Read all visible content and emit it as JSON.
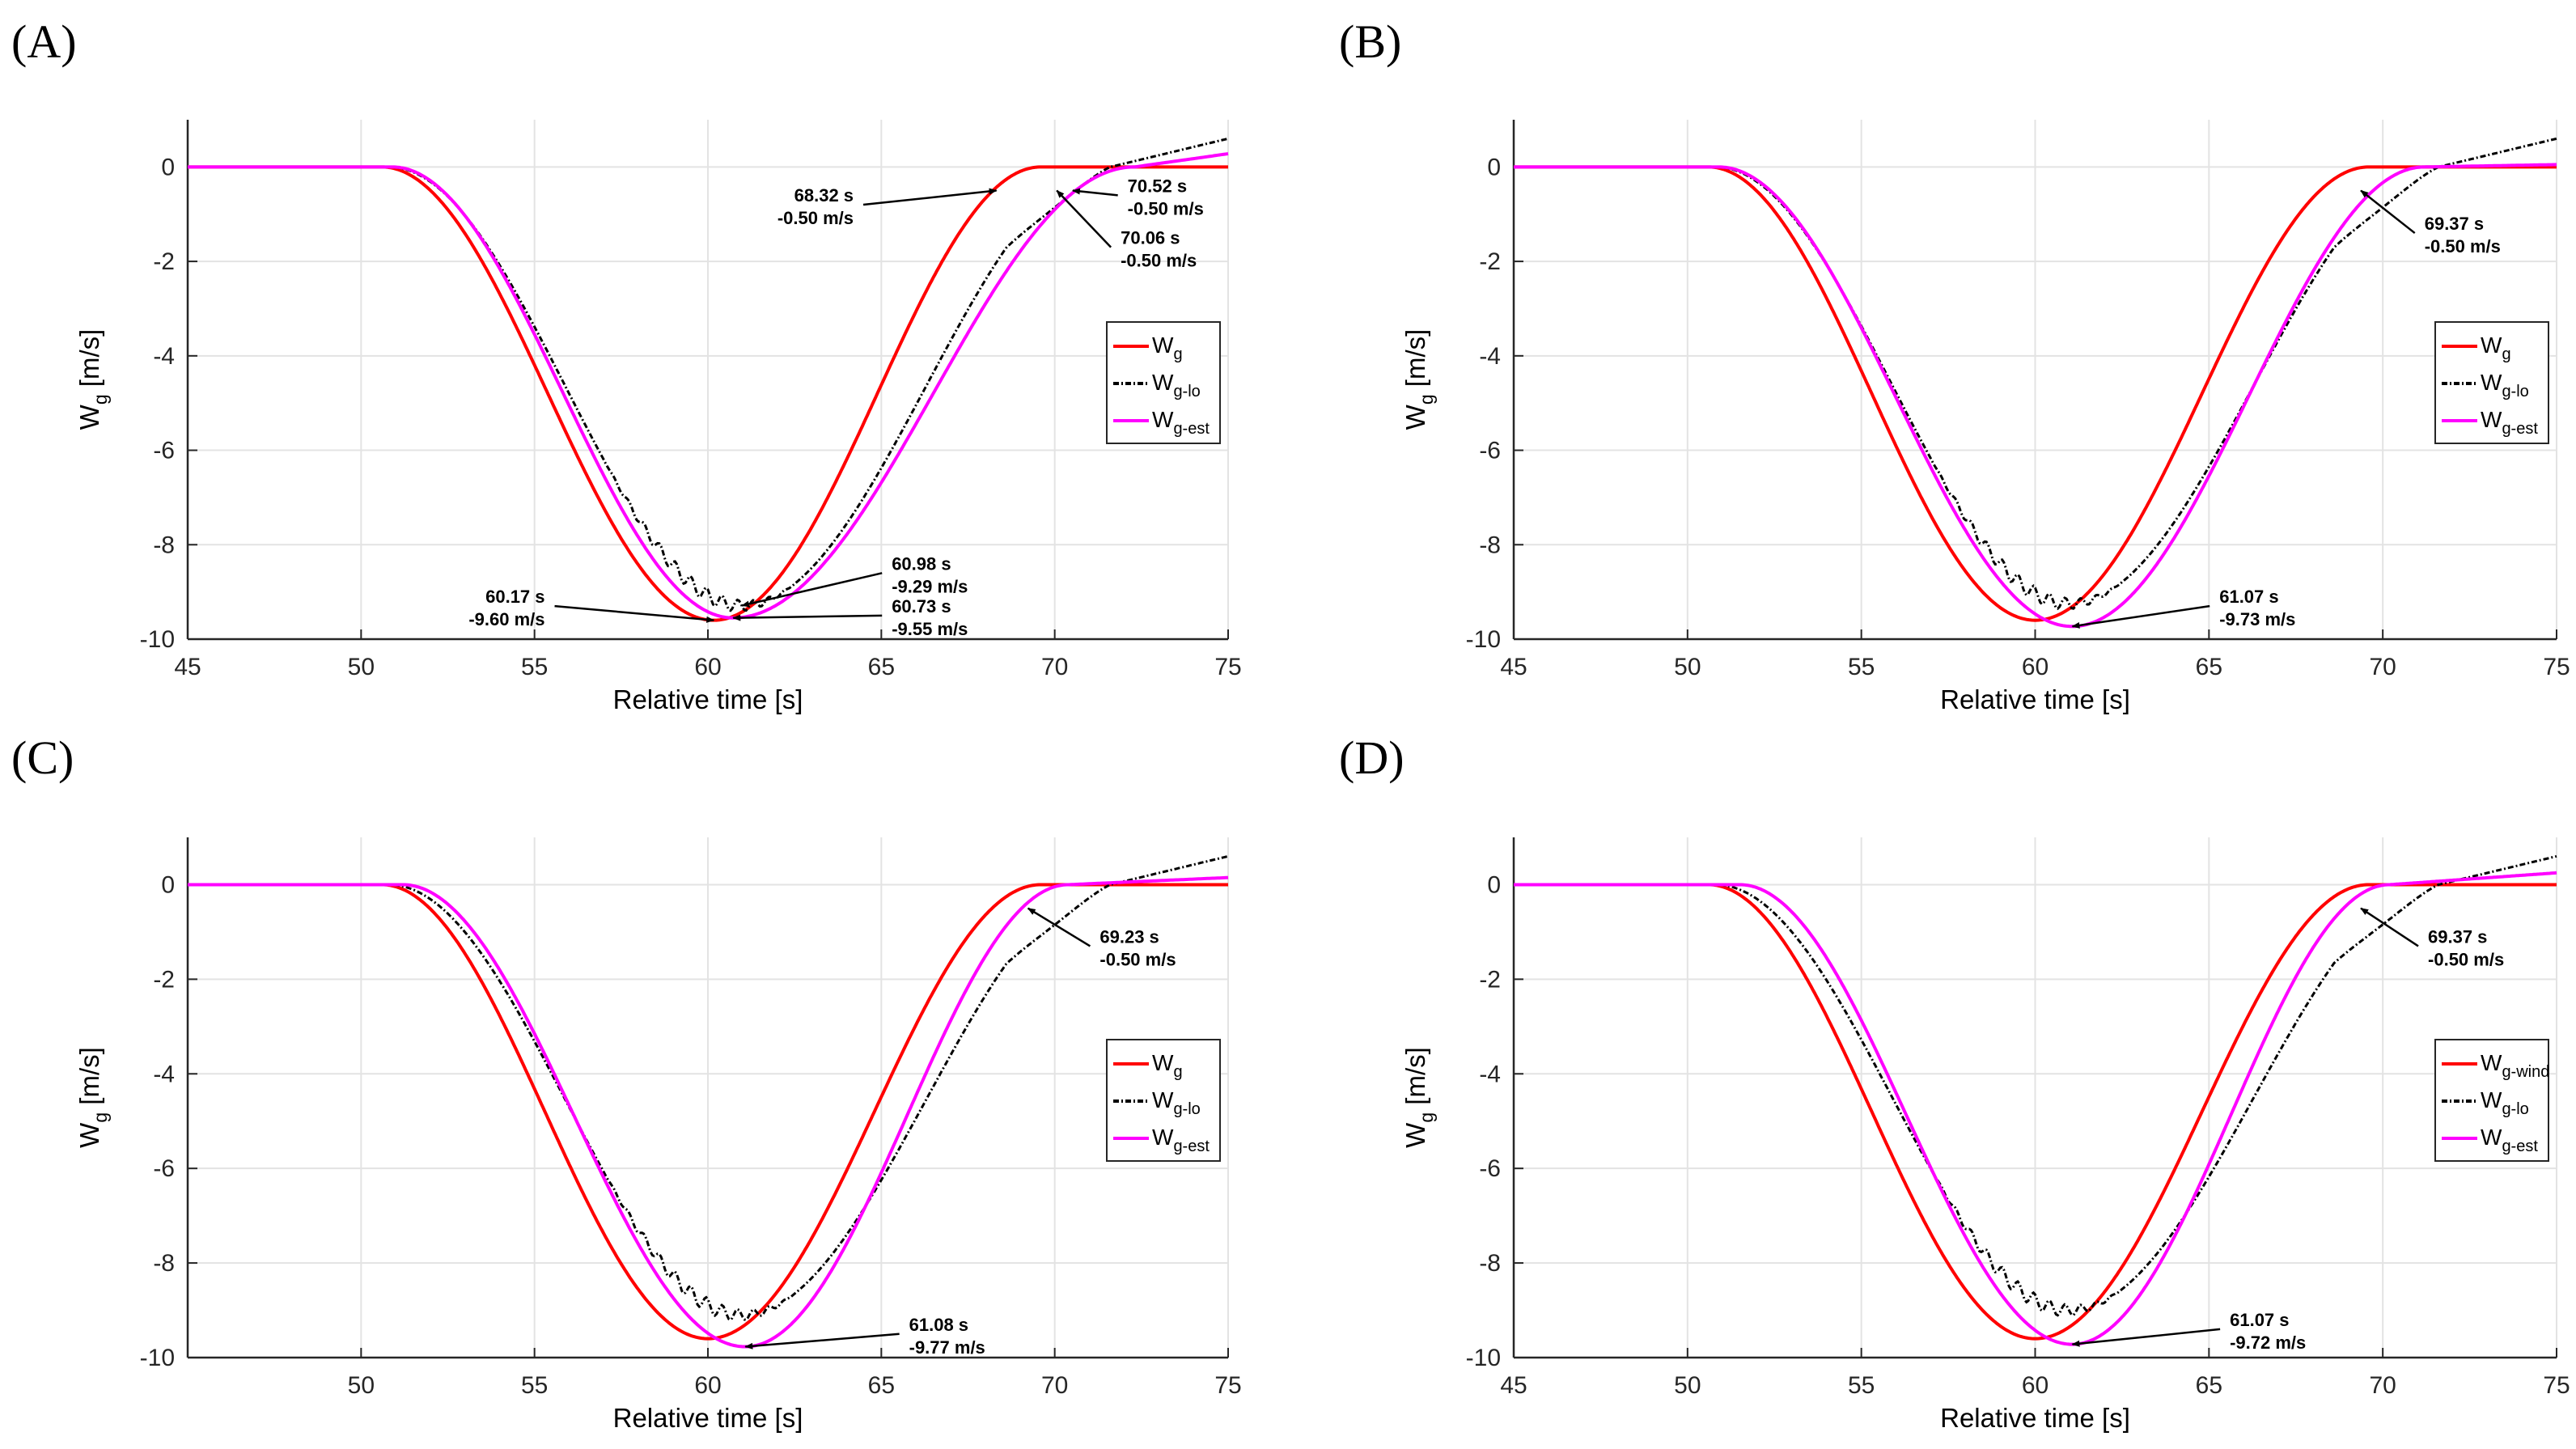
{
  "colors": {
    "wg": "#ff0000",
    "wg_lo": "#000000",
    "wg_est": "#ff00ff"
  },
  "chart_data": [
    {
      "panel_label": "(A)",
      "type": "line",
      "xlabel": "Relative time [s]",
      "ylabel_main": "W",
      "ylabel_sub": "g",
      "ylabel_unit": " [m/s]",
      "xlim": [
        45,
        75
      ],
      "ylim": [
        -10,
        1
      ],
      "xticks": [
        "45",
        "50",
        "55",
        "60",
        "65",
        "70",
        "75"
      ],
      "yticks": [
        "0",
        "-2",
        "-4",
        "-6",
        "-8",
        "-10"
      ],
      "grid": true,
      "legend_position": "right",
      "legend": [
        {
          "main": "W",
          "sub": "g"
        },
        {
          "main": "W",
          "sub": "g-lo"
        },
        {
          "main": "W",
          "sub": "g-est"
        }
      ],
      "series_params": {
        "wg": {
          "start": 50.6,
          "min_t": 60.17,
          "min_v": -9.6,
          "end": 69.6,
          "tail": 0
        },
        "wg_est": {
          "start": 50.9,
          "min_t": 60.73,
          "min_v": -9.55,
          "end": 72.3,
          "tail": 0.28
        },
        "wg_lo": {
          "start": 50.8,
          "min_t": 60.98,
          "min_v": -9.29,
          "end": 71.6,
          "tail": 0.6
        }
      },
      "annotations": [
        {
          "line1": "68.32 s",
          "line2": "-0.50 m/s",
          "x": 68.32,
          "y": -0.5,
          "tx": 64.2,
          "ty": -0.8,
          "align": "right"
        },
        {
          "line1": "70.52 s",
          "line2": "-0.50 m/s",
          "x": 70.52,
          "y": -0.5,
          "tx": 72.1,
          "ty": -0.6,
          "align": "left"
        },
        {
          "line1": "70.06 s",
          "line2": "-0.50 m/s",
          "x": 70.06,
          "y": -0.5,
          "tx": 71.9,
          "ty": -1.7,
          "align": "left"
        },
        {
          "line1": "60.17 s",
          "line2": "-9.60 m/s",
          "x": 60.17,
          "y": -9.6,
          "tx": 55.3,
          "ty": -9.3,
          "align": "right"
        },
        {
          "line1": "60.98 s",
          "line2": "-9.29 m/s",
          "x": 60.98,
          "y": -9.29,
          "tx": 65.3,
          "ty": -8.6,
          "align": "left"
        },
        {
          "line1": "60.73 s",
          "line2": "-9.55 m/s",
          "x": 60.73,
          "y": -9.55,
          "tx": 65.3,
          "ty": -9.5,
          "align": "left"
        }
      ]
    },
    {
      "panel_label": "(B)",
      "type": "line",
      "xlabel": "Relative time [s]",
      "ylabel_main": "W",
      "ylabel_sub": "g",
      "ylabel_unit": " [m/s]",
      "xlim": [
        45,
        75
      ],
      "ylim": [
        -10,
        1
      ],
      "xticks": [
        "45",
        "50",
        "55",
        "60",
        "65",
        "70",
        "75"
      ],
      "yticks": [
        "0",
        "-2",
        "-4",
        "-6",
        "-8",
        "-10"
      ],
      "grid": true,
      "legend_position": "right",
      "legend": [
        {
          "main": "W",
          "sub": "g"
        },
        {
          "main": "W",
          "sub": "g-lo"
        },
        {
          "main": "W",
          "sub": "g-est"
        }
      ],
      "series_params": {
        "wg": {
          "start": 50.6,
          "min_t": 60.0,
          "min_v": -9.6,
          "end": 69.6,
          "tail": 0
        },
        "wg_est": {
          "start": 50.9,
          "min_t": 61.07,
          "min_v": -9.73,
          "end": 71.2,
          "tail": 0.05
        },
        "wg_lo": {
          "start": 50.8,
          "min_t": 60.98,
          "min_v": -9.25,
          "end": 71.6,
          "tail": 0.6
        }
      },
      "annotations": [
        {
          "line1": "69.37 s",
          "line2": "-0.50 m/s",
          "x": 69.37,
          "y": -0.5,
          "tx": 71.2,
          "ty": -1.4,
          "align": "left"
        },
        {
          "line1": "61.07 s",
          "line2": "-9.73 m/s",
          "x": 61.07,
          "y": -9.73,
          "tx": 65.3,
          "ty": -9.3,
          "align": "left"
        }
      ]
    },
    {
      "panel_label": "(C)",
      "type": "line",
      "xlabel": "Relative time [s]",
      "ylabel_main": "W",
      "ylabel_sub": "g",
      "ylabel_unit": " [m/s]",
      "xlim": [
        45,
        75
      ],
      "ylim": [
        -10,
        1
      ],
      "xticks": [
        "50",
        "55",
        "60",
        "65",
        "70",
        "75"
      ],
      "yticks": [
        "0",
        "-2",
        "-4",
        "-6",
        "-8",
        "-10"
      ],
      "grid": true,
      "legend_position": "right",
      "legend": [
        {
          "main": "W",
          "sub": "g"
        },
        {
          "main": "W",
          "sub": "g-lo"
        },
        {
          "main": "W",
          "sub": "g-est"
        }
      ],
      "series_params": {
        "wg": {
          "start": 50.6,
          "min_t": 60.0,
          "min_v": -9.6,
          "end": 69.6,
          "tail": 0
        },
        "wg_est": {
          "start": 51.2,
          "min_t": 61.08,
          "min_v": -9.77,
          "end": 70.4,
          "tail": 0.15
        },
        "wg_lo": {
          "start": 50.8,
          "min_t": 60.98,
          "min_v": -9.1,
          "end": 71.6,
          "tail": 0.6
        }
      },
      "annotations": [
        {
          "line1": "69.23 s",
          "line2": "-0.50 m/s",
          "x": 69.23,
          "y": -0.5,
          "tx": 71.3,
          "ty": -1.3,
          "align": "left"
        },
        {
          "line1": "61.08 s",
          "line2": "-9.77 m/s",
          "x": 61.08,
          "y": -9.77,
          "tx": 65.8,
          "ty": -9.5,
          "align": "left"
        }
      ]
    },
    {
      "panel_label": "(D)",
      "type": "line",
      "xlabel": "Relative time [s]",
      "ylabel_main": "W",
      "ylabel_sub": "g",
      "ylabel_unit": " [m/s]",
      "xlim": [
        45,
        75
      ],
      "ylim": [
        -10,
        1
      ],
      "xticks": [
        "45",
        "50",
        "55",
        "60",
        "65",
        "70",
        "75"
      ],
      "yticks": [
        "0",
        "-2",
        "-4",
        "-6",
        "-8",
        "-10"
      ],
      "grid": true,
      "legend_position": "right",
      "legend": [
        {
          "main": "W",
          "sub": "g-wind"
        },
        {
          "main": "W",
          "sub": "g-lo"
        },
        {
          "main": "W",
          "sub": "g-est"
        }
      ],
      "series_params": {
        "wg": {
          "start": 50.6,
          "min_t": 60.0,
          "min_v": -9.6,
          "end": 69.6,
          "tail": 0
        },
        "wg_est": {
          "start": 51.5,
          "min_t": 61.07,
          "min_v": -9.72,
          "end": 70.2,
          "tail": 0.25
        },
        "wg_lo": {
          "start": 50.8,
          "min_t": 60.98,
          "min_v": -9.0,
          "end": 71.6,
          "tail": 0.6
        }
      },
      "annotations": [
        {
          "line1": "69.37 s",
          "line2": "-0.50 m/s",
          "x": 69.37,
          "y": -0.5,
          "tx": 71.3,
          "ty": -1.3,
          "align": "left"
        },
        {
          "line1": "61.07 s",
          "line2": "-9.72 m/s",
          "x": 61.07,
          "y": -9.72,
          "tx": 65.6,
          "ty": -9.4,
          "align": "left"
        }
      ]
    }
  ]
}
